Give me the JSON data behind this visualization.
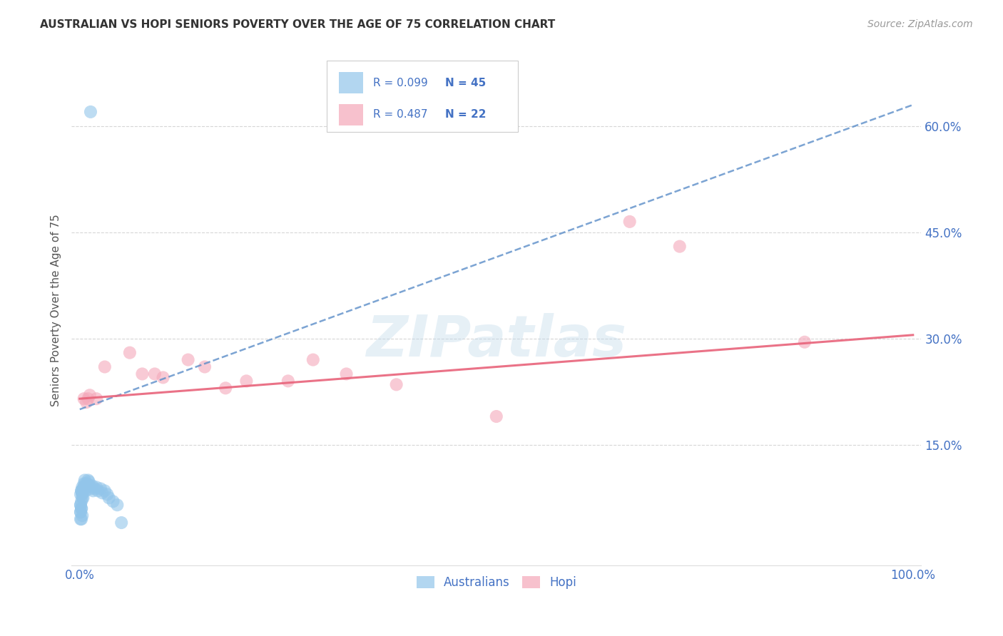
{
  "title": "AUSTRALIAN VS HOPI SENIORS POVERTY OVER THE AGE OF 75 CORRELATION CHART",
  "source": "Source: ZipAtlas.com",
  "ylabel": "Seniors Poverty Over the Age of 75",
  "xlim": [
    -0.01,
    1.01
  ],
  "ylim": [
    -0.02,
    0.7
  ],
  "xticks": [
    0.0,
    0.25,
    0.5,
    0.75,
    1.0
  ],
  "xtick_labels": [
    "0.0%",
    "",
    "",
    "",
    "100.0%"
  ],
  "ytick_labels": [
    "15.0%",
    "30.0%",
    "45.0%",
    "60.0%"
  ],
  "ytick_vals": [
    0.15,
    0.3,
    0.45,
    0.6
  ],
  "watermark": "ZIPatlas",
  "legend_r1": "R = 0.099",
  "legend_n1": "N = 45",
  "legend_r2": "R = 0.487",
  "legend_n2": "N = 22",
  "australian_color": "#92C5EA",
  "hopi_color": "#F4A7B9",
  "australian_line_color": "#5B8DC8",
  "hopi_line_color": "#E8637A",
  "background_color": "#FFFFFF",
  "grid_color": "#CCCCCC",
  "title_color": "#333333",
  "axis_label_color": "#555555",
  "tick_color": "#4472C4",
  "source_color": "#999999",
  "aus_x": [
    0.013,
    0.002,
    0.003,
    0.001,
    0.002,
    0.001,
    0.003,
    0.001,
    0.002,
    0.003,
    0.004,
    0.002,
    0.001,
    0.002,
    0.001,
    0.003,
    0.002,
    0.001,
    0.005,
    0.004,
    0.003,
    0.006,
    0.005,
    0.007,
    0.006,
    0.008,
    0.007,
    0.009,
    0.01,
    0.011,
    0.012,
    0.013,
    0.015,
    0.016,
    0.018,
    0.02,
    0.022,
    0.025,
    0.027,
    0.03,
    0.033,
    0.035,
    0.04,
    0.045,
    0.05
  ],
  "aus_y": [
    0.62,
    0.085,
    0.075,
    0.065,
    0.06,
    0.055,
    0.05,
    0.045,
    0.045,
    0.08,
    0.075,
    0.07,
    0.065,
    0.06,
    0.055,
    0.09,
    0.085,
    0.08,
    0.095,
    0.088,
    0.082,
    0.1,
    0.09,
    0.095,
    0.088,
    0.092,
    0.085,
    0.095,
    0.1,
    0.098,
    0.092,
    0.088,
    0.092,
    0.085,
    0.088,
    0.09,
    0.085,
    0.088,
    0.082,
    0.085,
    0.08,
    0.075,
    0.07,
    0.065,
    0.04
  ],
  "hopi_x": [
    0.005,
    0.008,
    0.01,
    0.012,
    0.02,
    0.03,
    0.06,
    0.075,
    0.09,
    0.1,
    0.13,
    0.15,
    0.175,
    0.2,
    0.25,
    0.28,
    0.32,
    0.38,
    0.5,
    0.66,
    0.72,
    0.87
  ],
  "hopi_y": [
    0.215,
    0.21,
    0.215,
    0.22,
    0.215,
    0.26,
    0.28,
    0.25,
    0.25,
    0.245,
    0.27,
    0.26,
    0.23,
    0.24,
    0.24,
    0.27,
    0.25,
    0.235,
    0.19,
    0.465,
    0.43,
    0.295
  ],
  "aus_line_x0": 0.0,
  "aus_line_y0": 0.2,
  "aus_line_x1": 1.0,
  "aus_line_y1": 0.63,
  "hopi_line_x0": 0.0,
  "hopi_line_y0": 0.215,
  "hopi_line_x1": 1.0,
  "hopi_line_y1": 0.305
}
